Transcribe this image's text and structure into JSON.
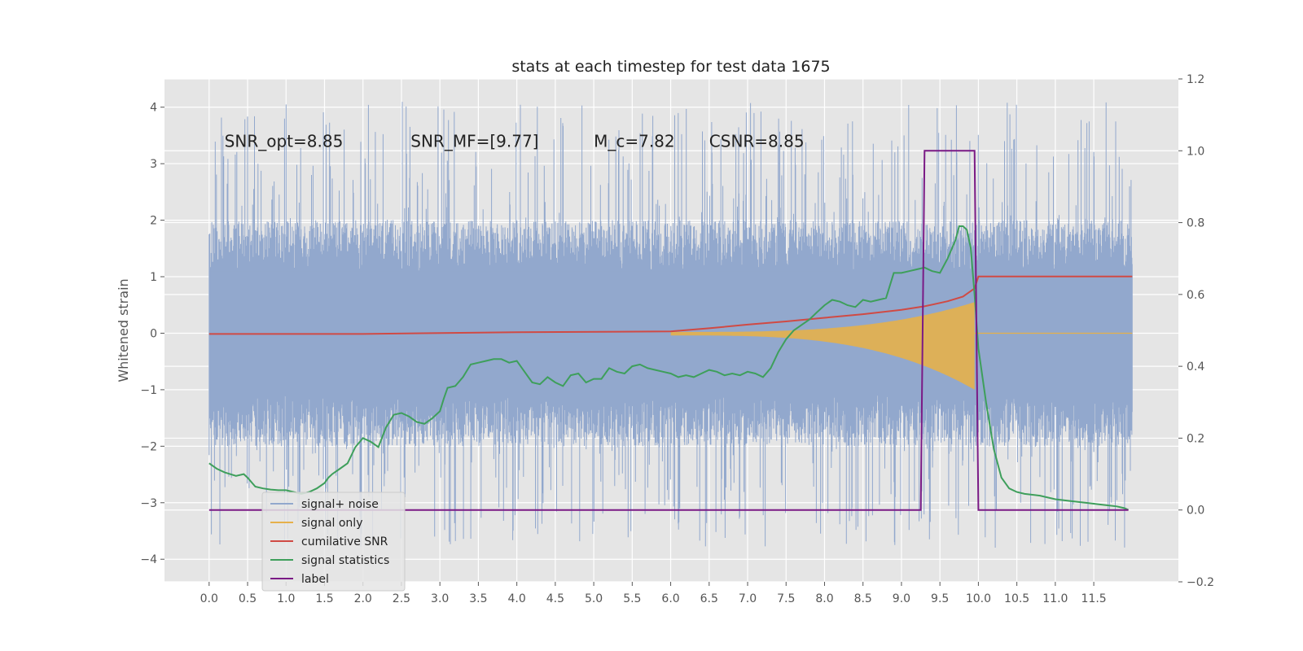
{
  "chart_data": {
    "type": "line",
    "title": "stats at each timestep for test data 1675",
    "ylabel": "Whitened strain",
    "xlabel": "",
    "xlim": [
      -0.58,
      12.6
    ],
    "ylim": [
      -4.4,
      4.5
    ],
    "y2lim": [
      -0.2,
      1.2
    ],
    "grid": true,
    "legend_placement": "lower-left",
    "x_ticks": [
      "0.0",
      "0.5",
      "1.0",
      "1.5",
      "2.0",
      "2.5",
      "3.0",
      "3.5",
      "4.0",
      "4.5",
      "5.0",
      "5.5",
      "6.0",
      "6.5",
      "7.0",
      "7.5",
      "8.0",
      "8.5",
      "9.0",
      "9.5",
      "10.0",
      "10.5",
      "11.0",
      "11.5"
    ],
    "y_ticks": [
      "4",
      "3",
      "2",
      "1",
      "0",
      "−1",
      "−2",
      "−3",
      "−4"
    ],
    "y2_ticks": [
      "1.2",
      "1.0",
      "0.8",
      "0.6",
      "0.4",
      "0.2",
      "0.0",
      "−0.2"
    ],
    "annotations": [
      {
        "text": "SNR_opt=8.85",
        "x": 0.2,
        "y": 3.3
      },
      {
        "text": "SNR_MF=[9.77]",
        "x": 2.62,
        "y": 3.3
      },
      {
        "text": "M_c=7.82",
        "x": 5.0,
        "y": 3.3
      },
      {
        "text": "CSNR=8.85",
        "x": 6.5,
        "y": 3.3
      }
    ],
    "series": [
      {
        "name": "signal+ noise",
        "color": "#92a8cd",
        "axis": "left",
        "kind": "noise",
        "t_start": 0.0,
        "t_end": 12.0,
        "envelope": 2.0,
        "spike_max": 4.1
      },
      {
        "name": "signal only",
        "color": "#e6b04b",
        "axis": "left",
        "kind": "chirp",
        "t_start": 6.0,
        "t_end": 9.95,
        "amp_start": 0.04,
        "amp_end": 1.0
      },
      {
        "name": "cumilative SNR",
        "color": "#d04a44",
        "axis": "right",
        "x": [
          0.0,
          2.0,
          4.0,
          6.0,
          6.5,
          7.0,
          7.5,
          8.0,
          8.5,
          9.0,
          9.3,
          9.6,
          9.8,
          9.95,
          10.0,
          12.0
        ],
        "y": [
          0.49,
          0.49,
          0.495,
          0.497,
          0.506,
          0.516,
          0.525,
          0.535,
          0.545,
          0.557,
          0.567,
          0.581,
          0.594,
          0.617,
          0.65,
          0.65
        ]
      },
      {
        "name": "signal statistics",
        "color": "#3e9f5b",
        "axis": "right",
        "x": [
          0.0,
          0.1,
          0.2,
          0.35,
          0.45,
          0.5,
          0.6,
          0.7,
          0.8,
          0.9,
          1.0,
          1.2,
          1.3,
          1.4,
          1.5,
          1.55,
          1.6,
          1.7,
          1.8,
          1.9,
          2.0,
          2.1,
          2.2,
          2.3,
          2.4,
          2.5,
          2.6,
          2.7,
          2.8,
          2.9,
          3.0,
          3.05,
          3.1,
          3.2,
          3.3,
          3.4,
          3.5,
          3.6,
          3.7,
          3.8,
          3.9,
          4.0,
          4.1,
          4.2,
          4.3,
          4.4,
          4.5,
          4.6,
          4.7,
          4.8,
          4.9,
          5.0,
          5.1,
          5.2,
          5.3,
          5.4,
          5.5,
          5.6,
          5.7,
          5.8,
          5.9,
          6.0,
          6.1,
          6.2,
          6.3,
          6.4,
          6.5,
          6.6,
          6.7,
          6.8,
          6.9,
          7.0,
          7.1,
          7.2,
          7.3,
          7.4,
          7.5,
          7.6,
          7.7,
          7.8,
          7.9,
          8.0,
          8.1,
          8.2,
          8.3,
          8.4,
          8.5,
          8.6,
          8.7,
          8.8,
          8.9,
          9.0,
          9.1,
          9.2,
          9.3,
          9.4,
          9.5,
          9.6,
          9.7,
          9.75,
          9.8,
          9.85,
          9.9,
          9.95,
          10.0,
          10.1,
          10.2,
          10.3,
          10.4,
          10.5,
          10.6,
          10.8,
          11.0,
          11.2,
          11.4,
          11.6,
          11.8,
          11.9,
          11.95
        ],
        "y": [
          0.13,
          0.115,
          0.105,
          0.095,
          0.1,
          0.09,
          0.065,
          0.06,
          0.057,
          0.055,
          0.055,
          0.045,
          0.05,
          0.06,
          0.075,
          0.09,
          0.1,
          0.115,
          0.13,
          0.175,
          0.2,
          0.19,
          0.175,
          0.23,
          0.265,
          0.27,
          0.26,
          0.245,
          0.24,
          0.255,
          0.275,
          0.31,
          0.34,
          0.345,
          0.37,
          0.405,
          0.41,
          0.415,
          0.42,
          0.42,
          0.41,
          0.415,
          0.385,
          0.355,
          0.35,
          0.37,
          0.355,
          0.345,
          0.375,
          0.38,
          0.355,
          0.365,
          0.365,
          0.395,
          0.385,
          0.38,
          0.4,
          0.405,
          0.395,
          0.39,
          0.385,
          0.38,
          0.37,
          0.375,
          0.37,
          0.38,
          0.39,
          0.385,
          0.375,
          0.38,
          0.375,
          0.385,
          0.38,
          0.37,
          0.395,
          0.44,
          0.475,
          0.5,
          0.515,
          0.53,
          0.55,
          0.57,
          0.585,
          0.58,
          0.57,
          0.565,
          0.585,
          0.58,
          0.585,
          0.59,
          0.66,
          0.66,
          0.665,
          0.67,
          0.675,
          0.665,
          0.66,
          0.7,
          0.75,
          0.79,
          0.79,
          0.78,
          0.73,
          0.6,
          0.45,
          0.3,
          0.17,
          0.09,
          0.06,
          0.05,
          0.045,
          0.04,
          0.03,
          0.025,
          0.02,
          0.015,
          0.01,
          0.005,
          0.0
        ]
      },
      {
        "name": "label",
        "color": "#7a1a85",
        "axis": "right",
        "x": [
          0.0,
          9.25,
          9.3,
          9.95,
          10.0,
          11.95
        ],
        "y": [
          0.0,
          0.0,
          1.0,
          1.0,
          0.0,
          0.0
        ]
      }
    ]
  }
}
